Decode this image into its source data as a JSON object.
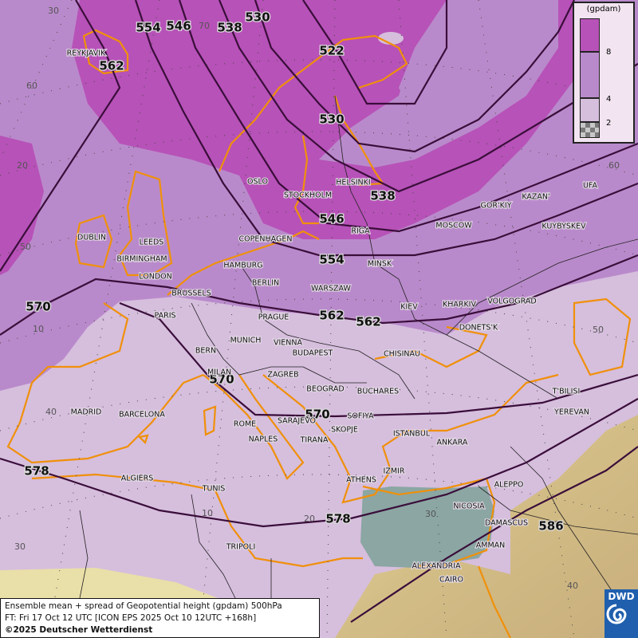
{
  "title": "Ensemble mean + spread of Geopotential height (gpdam) 500hPa",
  "forecast_time": "FT: Fri 17 Oct 12 UTC [ICON EPS 2025 Oct 10 12UTC +168h]",
  "copyright": "©2025 Deutscher Wetterdienst",
  "logo_text": "DWD",
  "legend": {
    "unit": "(gpdam)",
    "ticks": [
      "8",
      "4",
      "2"
    ],
    "bins": [
      {
        "range": ">8",
        "color": "#b752b8"
      },
      {
        "range": "4-8",
        "color": "#b98acb"
      },
      {
        "range": "2-4",
        "color": "#d6bedd"
      },
      {
        "range": "<2",
        "color": "checker-grey"
      }
    ]
  },
  "contour_labels": [
    "554",
    "546",
    "538",
    "530",
    "522",
    "562",
    "530",
    "538",
    "546",
    "554",
    "562",
    "562",
    "570",
    "570",
    "578",
    "578",
    "586",
    "570"
  ],
  "cities": [
    "REYKJAVIK",
    "OSLO",
    "STOCKHOLM",
    "HELSINKI",
    "RIGA",
    "MOSCOW",
    "GOR'KIY",
    "KAZAN'",
    "UFA",
    "KUYBYSKEV",
    "DUBLIN",
    "LEEDS",
    "BIRMINGHAM",
    "LONDON",
    "COPENHAGEN",
    "HAMBURG",
    "BERLIN",
    "MINSK",
    "WARSZAW",
    "KIEV",
    "KHARKIV",
    "VOLGOGRAD",
    "DONETS'K",
    "BRUSSELS",
    "PARIS",
    "PRAGUE",
    "MUNICH",
    "VIENNA",
    "BUDAPEST",
    "CHISINAU",
    "BERN",
    "MILAN",
    "ZAGREB",
    "BEOGRAD",
    "BUCHARES",
    "SARAJEVO",
    "SOFIYA",
    "SKOPJE",
    "TIRANA",
    "ISTANBUL",
    "ANKARA",
    "MADRID",
    "BARCELONA",
    "ROME",
    "NAPLES",
    "T'BILISI",
    "YEREVAN",
    "ALGIERS",
    "TUNIS",
    "ATHENS",
    "IZMIR",
    "ALEPPO",
    "NICOSIA",
    "DAMASCUS",
    "AMMAN",
    "TRIPOLI",
    "ALEXANDRIA",
    "CAIRO"
  ],
  "grid_labels": [
    "30",
    "60",
    "20",
    "50",
    "10",
    "40",
    "30",
    "20",
    "10",
    "30",
    "40",
    "50",
    "60",
    "70"
  ]
}
